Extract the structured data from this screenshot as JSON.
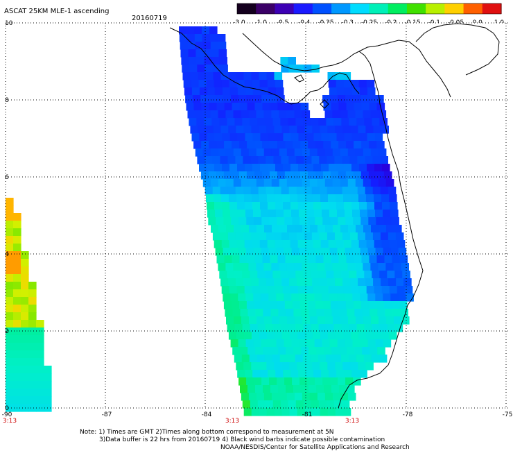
{
  "header": {
    "title": "ASCAT 25KM MLE-1 ascending",
    "date": "20160719"
  },
  "colorbar": {
    "tick_labels": [
      "-3.0",
      "-1.0",
      "-0.5",
      "-0.4",
      "-0.35",
      "-0.3",
      "-0.25",
      "-0.2",
      "-0.15",
      "-0.1",
      "-0.05",
      "0.0",
      "1.0"
    ],
    "colors": [
      "#14001e",
      "#3a0066",
      "#3c00b4",
      "#1a1aff",
      "#0050ff",
      "#0098ff",
      "#00dcff",
      "#00f0b8",
      "#00ee60",
      "#40e000",
      "#b8f000",
      "#ffd000",
      "#ff6000",
      "#e01010"
    ]
  },
  "axes": {
    "lat_labels": [
      "0",
      "2",
      "4",
      "6",
      "8",
      "10"
    ],
    "lon_labels": [
      "-90",
      "-87",
      "-84",
      "-81",
      "-78",
      "-75"
    ],
    "time_labels": [
      "3:13",
      "3:13",
      "3:13"
    ]
  },
  "notes": [
    "Note: 1) Times are GMT 2)Times along bottom correspond to measurement at 5N",
    "3)Data buffer is 22 hrs from 20160719 4) Black wind barbs indicate possible contamination",
    "NOAA/NESDIS/Center for Satellite Applications and Research"
  ]
}
